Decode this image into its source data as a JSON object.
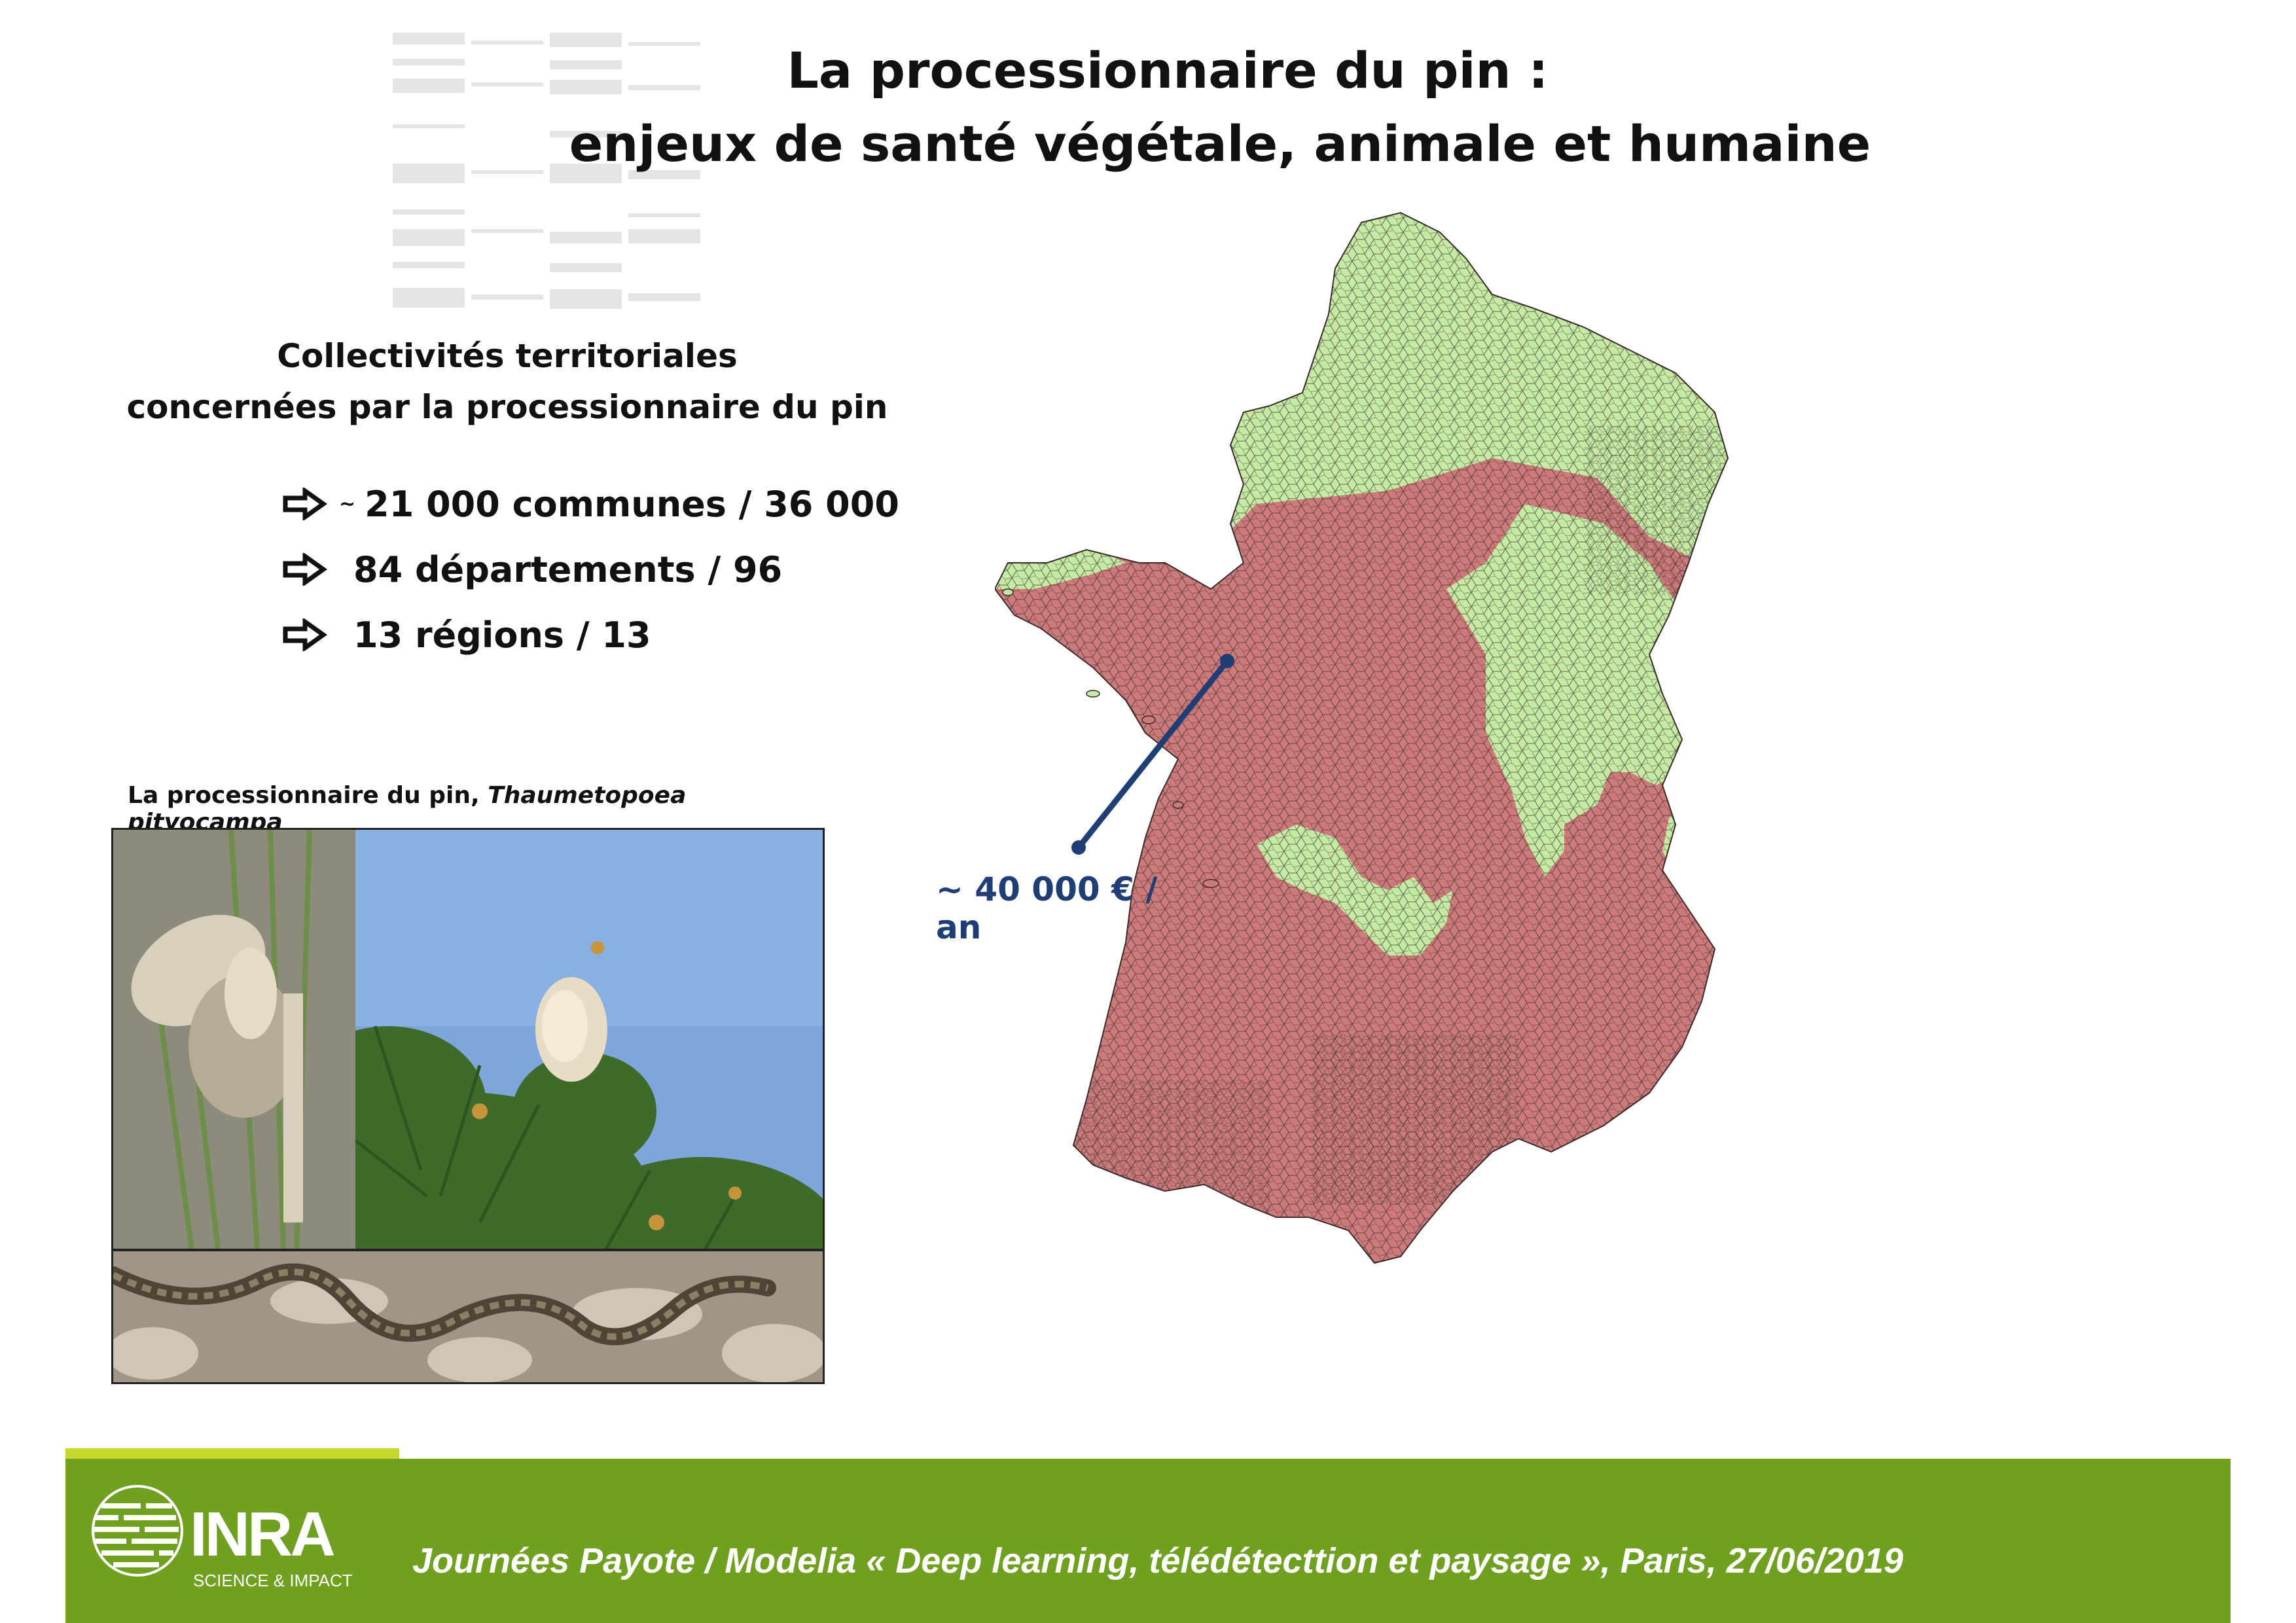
{
  "title": {
    "line1": "La processionnaire du pin :",
    "line2": "enjeux de santé végétale, animale et humaine"
  },
  "stats": {
    "heading_line1": "Collectivités territoriales",
    "heading_line2": "concernées par la processionnaire du pin",
    "items": [
      {
        "prefix": "~",
        "text": "21 000 communes / 36 000"
      },
      {
        "prefix": "",
        "text": "84 départements / 96"
      },
      {
        "prefix": "",
        "text": "13 régions / 13"
      }
    ]
  },
  "photos": {
    "caption_plain": "La processionnaire du pin, ",
    "caption_italic": "Thaumetopoea pityocampa"
  },
  "map": {
    "annotation": "~ 40 000 € / an",
    "colors": {
      "affected": "#cd7a7a",
      "unaffected": "#c4eaa4",
      "leader_line": "#1f3e76"
    }
  },
  "footer": {
    "text": "Journées Payote / Modelia « Deep learning, télédétecttion et paysage », Paris, 27/06/2019",
    "logo_text": "INRA",
    "logo_subtext": "SCIENCE & IMPACT",
    "color": "#70a020",
    "accent_color": "#c6d82b"
  }
}
